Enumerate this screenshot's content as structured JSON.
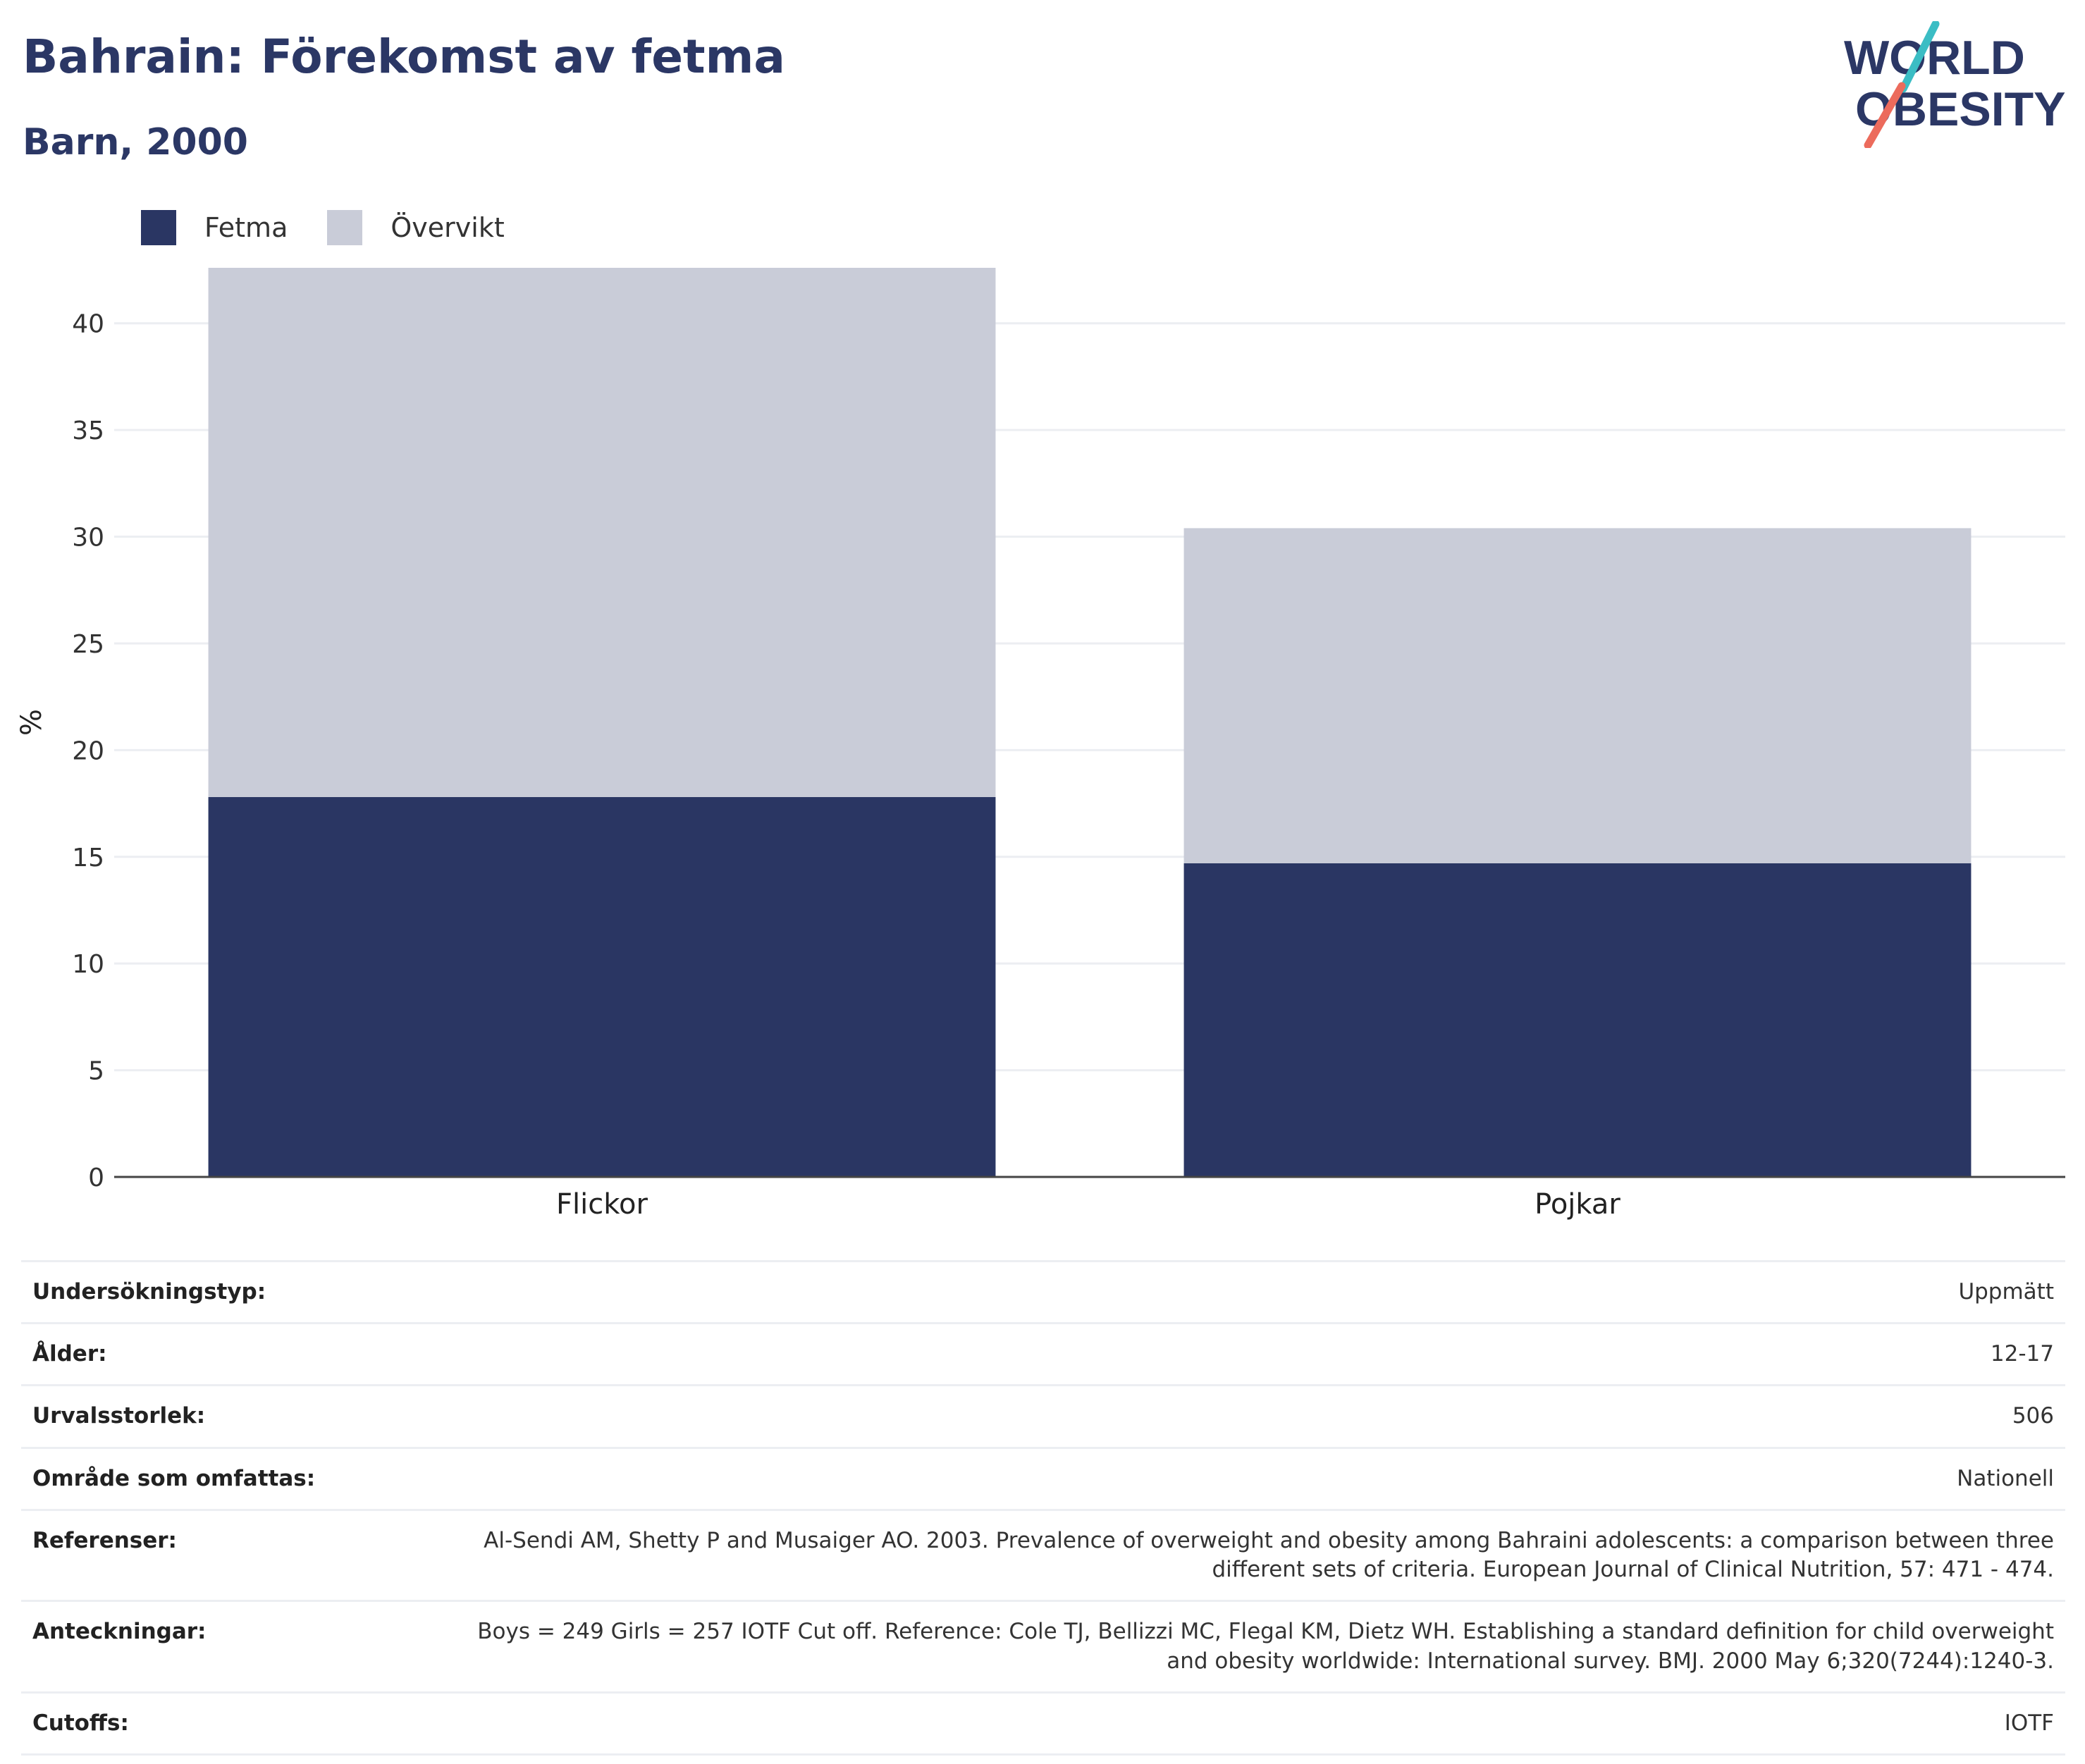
{
  "header": {
    "title": "Bahrain: Förekomst av fetma",
    "subtitle": "Barn, 2000"
  },
  "logo": {
    "line1": "WORLD",
    "line2": "OBESITY",
    "icon": "world-obesity-logo"
  },
  "legend": [
    {
      "label": "Fetma",
      "color": "#2a3663"
    },
    {
      "label": "Övervikt",
      "color": "#c9ccd8"
    }
  ],
  "chart_data": {
    "type": "bar",
    "stacked": true,
    "categories": [
      "Flickor",
      "Pojkar"
    ],
    "series": [
      {
        "name": "Fetma",
        "values": [
          17.8,
          14.7
        ],
        "color": "#2a3663"
      },
      {
        "name": "Övervikt",
        "values": [
          24.8,
          15.7
        ],
        "color": "#c9ccd8"
      }
    ],
    "ylabel": "%",
    "ylim": [
      0,
      42.6
    ],
    "yticks": [
      0,
      5,
      10,
      15,
      20,
      25,
      30,
      35,
      40
    ],
    "grid": true,
    "legend_position": "top-left"
  },
  "info": [
    {
      "key": "Undersökningstyp:",
      "value": "Uppmätt"
    },
    {
      "key": "Ålder:",
      "value": "12-17"
    },
    {
      "key": "Urvalsstorlek:",
      "value": "506"
    },
    {
      "key": "Område som omfattas:",
      "value": "Nationell"
    },
    {
      "key": "Referenser:",
      "value": "Al-Sendi AM, Shetty P and Musaiger AO. 2003. Prevalence of overweight and obesity among Bahraini adolescents: a comparison between three different sets of criteria. European Journal of Clinical Nutrition, 57: 471 - 474."
    },
    {
      "key": "Anteckningar:",
      "value": "Boys = 249 Girls = 257 IOTF Cut off. Reference: Cole TJ, Bellizzi MC, Flegal KM, Dietz WH. Establishing a standard definition for child overweight and obesity worldwide: International survey. BMJ. 2000 May 6;320(7244):1240-3."
    },
    {
      "key": "Cutoffs:",
      "value": "IOTF"
    }
  ]
}
